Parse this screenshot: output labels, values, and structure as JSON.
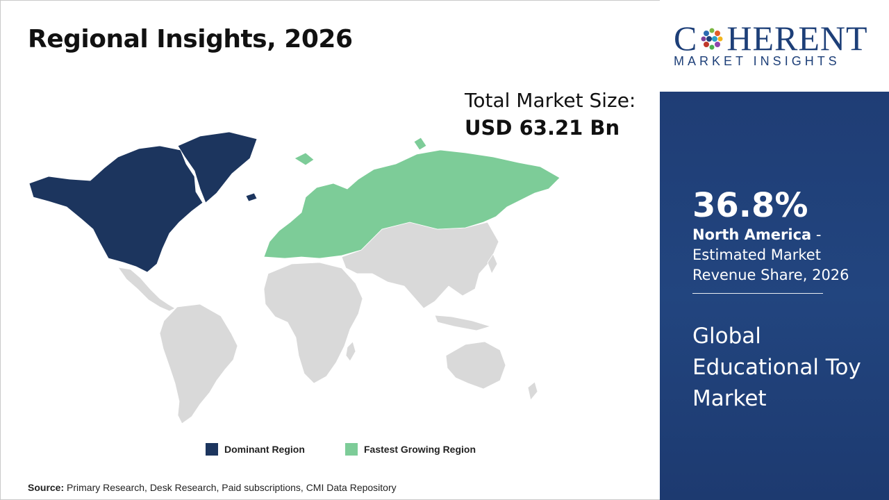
{
  "slide": {
    "title": "Regional Insights, 2026"
  },
  "market_size": {
    "label": "Total Market Size:",
    "value": "USD 63.21 Bn"
  },
  "map": {
    "colors": {
      "dominant": "#1c355e",
      "fastest_growing": "#7dcc98",
      "other": "#d9d9d9"
    },
    "dominant_region": "North America",
    "fastest_growing_region": "Europe & Russia"
  },
  "legend": [
    {
      "label": "Dominant Region",
      "color": "#1c355e"
    },
    {
      "label": "Fastest Growing Region",
      "color": "#7dcc98"
    }
  ],
  "source": {
    "label": "Source:",
    "text": "Primary Research, Desk Research, Paid subscriptions, CMI Data Repository"
  },
  "logo": {
    "main_before": "C",
    "main_after": "HERENT",
    "sub": "MARKET INSIGHTS"
  },
  "highlight": {
    "share": "36.8%",
    "region": "North America",
    "description": " - Estimated Market Revenue Share, 2026"
  },
  "market_name": "Global Educational Toy Market"
}
